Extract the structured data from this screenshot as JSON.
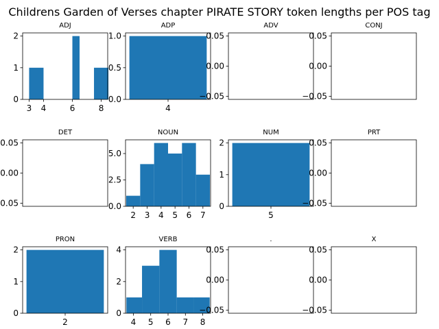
{
  "title": "Childrens Garden of Verses chapter PIRATE STORY token lengths per POS tag",
  "chart_data": {
    "type": "bar",
    "layout": "3x4 grid of histogram subplots",
    "bar_color": "#1f77b4",
    "panels": [
      {
        "title": "ADJ",
        "bins": [
          [
            3,
            4,
            1
          ],
          [
            4,
            5,
            0
          ],
          [
            5,
            6,
            0
          ],
          [
            6,
            6.5,
            2
          ],
          [
            6.5,
            7.5,
            0
          ],
          [
            7.5,
            8.5,
            1
          ]
        ],
        "xlim": [
          2.55,
          8.45
        ],
        "ylim": [
          0,
          2.1
        ],
        "xticks": [
          3,
          4,
          6,
          8
        ],
        "yticks": [
          0,
          1,
          2
        ]
      },
      {
        "title": "ADP",
        "bins": [
          [
            3.5,
            4.5,
            1
          ]
        ],
        "xlim": [
          3.45,
          4.55
        ],
        "ylim": [
          0,
          1.05
        ],
        "xticks": [
          4
        ],
        "yticks": [
          "0.0",
          "0.5",
          "1.0"
        ]
      },
      {
        "title": "ADV",
        "bins": [],
        "xlim": [
          0,
          1
        ],
        "ylim": [
          -0.055,
          0.055
        ],
        "xticks": [],
        "yticks": [
          "−0.05",
          "0.00",
          "0.05"
        ]
      },
      {
        "title": "CONJ",
        "bins": [],
        "xlim": [
          0,
          1
        ],
        "ylim": [
          -0.055,
          0.055
        ],
        "xticks": [],
        "yticks": [
          "−0.05",
          "0.00",
          "0.05"
        ]
      },
      {
        "title": "DET",
        "bins": [],
        "xlim": [
          0,
          1
        ],
        "ylim": [
          -0.055,
          0.055
        ],
        "xticks": [],
        "yticks": [
          "−0.05",
          "0.00",
          "0.05"
        ]
      },
      {
        "title": "NOUN",
        "bins": [
          [
            1.5,
            2.5,
            1
          ],
          [
            2.5,
            3.5,
            4
          ],
          [
            3.5,
            4.5,
            6
          ],
          [
            4.5,
            5.5,
            5
          ],
          [
            5.5,
            6.5,
            6
          ],
          [
            6.5,
            7.5,
            3
          ]
        ],
        "xlim": [
          1.45,
          7.55
        ],
        "ylim": [
          0,
          6.3
        ],
        "xticks": [
          2,
          3,
          4,
          5,
          6,
          7
        ],
        "yticks": [
          "0.0",
          "2.5",
          "5.0"
        ]
      },
      {
        "title": "NUM",
        "bins": [
          [
            4.5,
            5.5,
            2
          ]
        ],
        "xlim": [
          4.45,
          5.55
        ],
        "ylim": [
          0,
          2.1
        ],
        "xticks": [
          5
        ],
        "yticks": [
          0,
          1,
          2
        ]
      },
      {
        "title": "PRT",
        "bins": [],
        "xlim": [
          0,
          1
        ],
        "ylim": [
          -0.055,
          0.055
        ],
        "xticks": [],
        "yticks": [
          "−0.05",
          "0.00",
          "0.05"
        ]
      },
      {
        "title": "PRON",
        "bins": [
          [
            1.5,
            2.5,
            2
          ]
        ],
        "xlim": [
          1.45,
          2.55
        ],
        "ylim": [
          0,
          2.1
        ],
        "xticks": [
          2
        ],
        "yticks": [
          0,
          1,
          2
        ]
      },
      {
        "title": "VERB",
        "bins": [
          [
            3.6,
            4.5,
            1
          ],
          [
            4.5,
            5.5,
            3
          ],
          [
            5.5,
            6.5,
            4
          ],
          [
            6.5,
            7.5,
            1
          ],
          [
            7.5,
            8.4,
            1
          ]
        ],
        "xlim": [
          3.55,
          8.45
        ],
        "ylim": [
          0,
          4.2
        ],
        "xticks": [
          4,
          5,
          6,
          7,
          8
        ],
        "yticks": [
          0,
          2,
          4
        ]
      },
      {
        "title": ".",
        "bins": [],
        "xlim": [
          0,
          1
        ],
        "ylim": [
          -0.055,
          0.055
        ],
        "xticks": [],
        "yticks": [
          "−0.05",
          "0.00",
          "0.05"
        ]
      },
      {
        "title": "X",
        "bins": [],
        "xlim": [
          0,
          1
        ],
        "ylim": [
          -0.055,
          0.055
        ],
        "xticks": [],
        "yticks": [
          "−0.05",
          "0.00",
          "0.05"
        ]
      }
    ]
  }
}
